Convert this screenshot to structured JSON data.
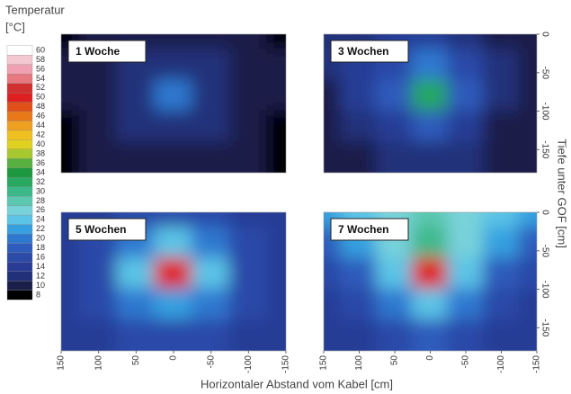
{
  "chart_data": {
    "type": "contour",
    "legend_title": [
      "Temperatur",
      "[°C]"
    ],
    "levels": [
      8,
      10,
      12,
      14,
      16,
      18,
      20,
      22,
      24,
      26,
      28,
      30,
      32,
      34,
      36,
      38,
      40,
      42,
      44,
      46,
      48,
      50,
      52,
      54,
      56,
      58,
      60
    ],
    "colors": [
      "#000000",
      "#1a1f4a",
      "#22307a",
      "#283c96",
      "#2c4aa8",
      "#2e5cbc",
      "#2f78d0",
      "#36a0e0",
      "#5cc4e6",
      "#78d2da",
      "#5cc8b0",
      "#3cb88a",
      "#28a860",
      "#1e9840",
      "#58b040",
      "#a8c830",
      "#e0d020",
      "#f0c020",
      "#f0a020",
      "#e87818",
      "#e05018",
      "#e02020",
      "#d03030",
      "#e87880",
      "#f0a0b0",
      "#f4c8d0",
      "#ffffff"
    ],
    "xlabel": "Horizontaler Abstand vom Kabel [cm]",
    "ylabel": "Tiefe unter GOF [cm]",
    "xlim": [
      150,
      -150
    ],
    "ylim": [
      0,
      -180
    ],
    "xticks": [
      150,
      100,
      50,
      0,
      -50,
      -100,
      -150
    ],
    "yticks": [
      0,
      -50,
      -100,
      -150
    ],
    "x": [
      150,
      100,
      50,
      0,
      -50,
      -100,
      -150
    ],
    "y": [
      0,
      -40,
      -80,
      -120,
      -160
    ],
    "panels": [
      {
        "title": "1 Woche",
        "values": [
          [
            9,
            10,
            11,
            11,
            11,
            10,
            9
          ],
          [
            10,
            11,
            12,
            13,
            12,
            11,
            10
          ],
          [
            10,
            11,
            13,
            20,
            13,
            11,
            10
          ],
          [
            9,
            11,
            12,
            13,
            12,
            11,
            9
          ],
          [
            9,
            10,
            11,
            11,
            11,
            10,
            9
          ]
        ]
      },
      {
        "title": "3 Wochen",
        "values": [
          [
            12,
            13,
            14,
            14,
            12,
            10,
            10
          ],
          [
            12,
            14,
            16,
            20,
            16,
            12,
            10
          ],
          [
            11,
            14,
            18,
            32,
            18,
            12,
            10
          ],
          [
            10,
            12,
            15,
            18,
            15,
            11,
            10
          ],
          [
            10,
            11,
            12,
            13,
            12,
            10,
            10
          ]
        ]
      },
      {
        "title": "5 Wochen",
        "values": [
          [
            14,
            15,
            16,
            17,
            16,
            15,
            14
          ],
          [
            15,
            16,
            20,
            24,
            20,
            16,
            15
          ],
          [
            15,
            17,
            24,
            50,
            24,
            17,
            15
          ],
          [
            15,
            16,
            20,
            22,
            20,
            16,
            15
          ],
          [
            14,
            15,
            16,
            17,
            16,
            15,
            14
          ]
        ]
      },
      {
        "title": "7 Wochen",
        "values": [
          [
            22,
            24,
            26,
            28,
            26,
            24,
            22
          ],
          [
            18,
            22,
            26,
            30,
            26,
            22,
            18
          ],
          [
            16,
            18,
            24,
            50,
            24,
            18,
            16
          ],
          [
            14,
            16,
            20,
            24,
            20,
            16,
            14
          ],
          [
            14,
            15,
            16,
            18,
            16,
            15,
            14
          ]
        ]
      }
    ]
  }
}
